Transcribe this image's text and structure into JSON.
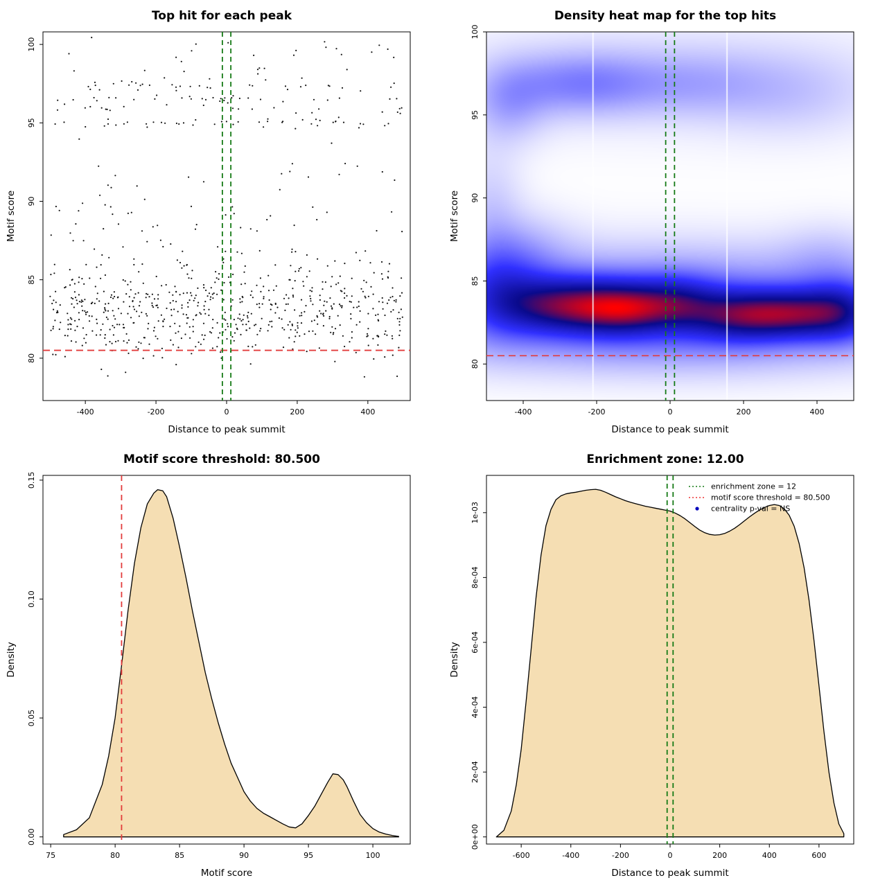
{
  "figure": {
    "background": "#ffffff"
  },
  "colors": {
    "background": "#ffffff",
    "point": "#151515",
    "threshold_red": "#e23b3b",
    "zone_green": "#157a15",
    "density_fill": "#f5deb3",
    "density_stroke": "#000000"
  },
  "chart_data": [
    {
      "id": "top-hit-scatter",
      "type": "scatter",
      "title": "Top hit for each peak",
      "xlabel": "Distance to peak summit",
      "ylabel": "Motif score",
      "xlim": [
        -520,
        520
      ],
      "ylim": [
        77.3,
        100.8
      ],
      "xticks": {
        "values": [
          -400,
          -200,
          0,
          200,
          400
        ],
        "labels": [
          "-400",
          "-200",
          "0",
          "200",
          "400"
        ]
      },
      "yticks": {
        "values": [
          80,
          85,
          90,
          95,
          100
        ],
        "labels": [
          "80",
          "85",
          "90",
          "95",
          "100"
        ]
      },
      "motif_score_threshold": 80.5,
      "enrichment_zone_halfwidth": 12,
      "overlays": {
        "hline": {
          "y": 80.5
        },
        "vlines": [
          {
            "x": -12
          },
          {
            "x": 12
          }
        ]
      },
      "points_spec": {
        "n": 870,
        "seed": 1337,
        "x_uniform": [
          -500,
          500
        ],
        "components": [
          {
            "weight": 0.72,
            "kind": "normal",
            "mean": 83.1,
            "sd": 1.5,
            "clip": [
              77.7,
              87.3
            ]
          },
          {
            "weight": 0.11,
            "kind": "normal",
            "mean": 88.8,
            "sd": 2.1,
            "clip": [
              85.6,
              94.4
            ]
          },
          {
            "weight": 0.17,
            "kind": "bands",
            "jitter": 0.16,
            "bands": [
              {
                "y": 95.0,
                "w": 0.26
              },
              {
                "y": 95.9,
                "w": 0.1
              },
              {
                "y": 96.5,
                "w": 0.2
              },
              {
                "y": 97.3,
                "w": 0.16
              },
              {
                "y": 97.7,
                "w": 0.08
              },
              {
                "y": 98.4,
                "w": 0.06
              },
              {
                "y": 99.1,
                "w": 0.05
              },
              {
                "y": 99.7,
                "w": 0.05
              },
              {
                "y": 100.3,
                "w": 0.04
              }
            ]
          }
        ]
      }
    },
    {
      "id": "density-heatmap",
      "type": "heatmap",
      "title": "Density heat map for the top hits",
      "xlabel": "Distance to peak summit",
      "ylabel": "Motif score",
      "xlim": [
        -500,
        500
      ],
      "ylim": [
        77.8,
        100
      ],
      "xticks": {
        "values": [
          -400,
          -200,
          0,
          200,
          400
        ],
        "labels": [
          "-400",
          "-200",
          "0",
          "200",
          "400"
        ]
      },
      "yticks": {
        "values": [
          80,
          85,
          90,
          95,
          100
        ],
        "labels": [
          "80",
          "85",
          "90",
          "95",
          "100"
        ]
      },
      "motif_score_threshold": 80.5,
      "enrichment_zone_halfwidth": 12,
      "overlays": {
        "hline": {
          "y": 80.5
        },
        "vlines": [
          {
            "x": -12
          },
          {
            "x": 12
          }
        ]
      },
      "white_gap_lines_x": [
        -210,
        155
      ],
      "palette": {
        "pos": [
          0,
          0.18,
          0.45,
          0.72,
          1
        ],
        "colors": [
          [
            255,
            255,
            255
          ],
          [
            176,
            176,
            255
          ],
          [
            48,
            48,
            255
          ],
          [
            10,
            10,
            140
          ],
          [
            255,
            0,
            0
          ]
        ]
      },
      "density_blobs": [
        {
          "x": -280,
          "y": 83.5,
          "sx": 115,
          "sy": 1.15,
          "a": 1.0
        },
        {
          "x": -120,
          "y": 83.3,
          "sx": 85,
          "sy": 1.05,
          "a": 0.8
        },
        {
          "x": 20,
          "y": 83.6,
          "sx": 80,
          "sy": 1.1,
          "a": 0.62
        },
        {
          "x": 170,
          "y": 82.9,
          "sx": 90,
          "sy": 1.05,
          "a": 0.6
        },
        {
          "x": 330,
          "y": 83.0,
          "sx": 110,
          "sy": 1.0,
          "a": 1.0
        },
        {
          "x": 470,
          "y": 83.2,
          "sx": 70,
          "sy": 1.25,
          "a": 0.55
        },
        {
          "x": -460,
          "y": 84.3,
          "sx": 85,
          "sy": 1.8,
          "a": 0.45
        },
        {
          "x": 0,
          "y": 84.0,
          "sx": 470,
          "sy": 2.0,
          "a": 0.45
        },
        {
          "x": 0,
          "y": 81.2,
          "sx": 450,
          "sy": 1.4,
          "a": 0.24
        },
        {
          "x": -250,
          "y": 96.9,
          "sx": 140,
          "sy": 1.3,
          "a": 0.34
        },
        {
          "x": -440,
          "y": 95.7,
          "sx": 70,
          "sy": 1.6,
          "a": 0.22
        },
        {
          "x": 60,
          "y": 96.9,
          "sx": 150,
          "sy": 1.35,
          "a": 0.18
        },
        {
          "x": 330,
          "y": 96.3,
          "sx": 150,
          "sy": 1.7,
          "a": 0.12
        },
        {
          "x": 0,
          "y": 97.3,
          "sx": 480,
          "sy": 2.4,
          "a": 0.08
        },
        {
          "x": -490,
          "y": 88.5,
          "sx": 60,
          "sy": 3.0,
          "a": 0.16
        },
        {
          "x": -390,
          "y": 87.0,
          "sx": 90,
          "sy": 1.5,
          "a": 0.14
        },
        {
          "x": 430,
          "y": 86.3,
          "sx": 90,
          "sy": 1.4,
          "a": 0.12
        }
      ]
    },
    {
      "id": "motif-score-density",
      "type": "area",
      "title": "Motif score threshold: 80.500",
      "xlabel": "Motif score",
      "ylabel": "Density",
      "xlim": [
        74.4,
        102.9
      ],
      "ylim": [
        -0.003,
        0.152
      ],
      "xticks": {
        "values": [
          75,
          80,
          85,
          90,
          95,
          100
        ],
        "labels": [
          "75",
          "80",
          "85",
          "90",
          "95",
          "100"
        ]
      },
      "yticks": {
        "values": [
          0,
          0.05,
          0.1,
          0.15
        ],
        "labels": [
          "0.00",
          "0.05",
          "0.10",
          "0.15"
        ]
      },
      "threshold_x": 80.5,
      "curve": {
        "x": [
          76,
          77,
          78,
          79,
          79.5,
          80,
          80.5,
          81,
          81.5,
          82,
          82.5,
          83,
          83.3,
          83.7,
          84,
          84.5,
          85,
          85.5,
          86,
          86.5,
          87,
          87.5,
          88,
          88.5,
          89,
          89.5,
          90,
          90.5,
          91,
          91.5,
          92,
          92.5,
          93,
          93.5,
          94,
          94.5,
          95,
          95.5,
          96,
          96.5,
          96.9,
          97.3,
          97.7,
          98,
          98.5,
          99,
          99.5,
          100,
          100.5,
          101,
          101.5,
          102
        ],
        "y": [
          0.001,
          0.003,
          0.008,
          0.022,
          0.034,
          0.05,
          0.072,
          0.095,
          0.115,
          0.13,
          0.14,
          0.1445,
          0.146,
          0.1455,
          0.143,
          0.134,
          0.122,
          0.109,
          0.095,
          0.082,
          0.069,
          0.058,
          0.048,
          0.039,
          0.031,
          0.025,
          0.019,
          0.015,
          0.012,
          0.01,
          0.0085,
          0.007,
          0.0055,
          0.0042,
          0.0038,
          0.0055,
          0.009,
          0.013,
          0.018,
          0.023,
          0.0265,
          0.0262,
          0.024,
          0.021,
          0.015,
          0.0095,
          0.006,
          0.0035,
          0.002,
          0.0012,
          0.0006,
          0.0002
        ]
      }
    },
    {
      "id": "summit-distance-density",
      "type": "area",
      "title": "Enrichment zone: 12.00",
      "xlabel": "Distance to peak summit",
      "ylabel": "Density",
      "xlim": [
        -740,
        740
      ],
      "ylim": [
        -2.2e-05,
        0.001115
      ],
      "xticks": {
        "values": [
          -600,
          -400,
          -200,
          0,
          200,
          400,
          600
        ],
        "labels": [
          "-600",
          "-400",
          "-200",
          "0",
          "200",
          "400",
          "600"
        ]
      },
      "yticks": {
        "values": [
          0,
          0.0002,
          0.0004,
          0.0006,
          0.0008,
          0.001
        ],
        "labels": [
          "0e+00",
          "2e-04",
          "4e-04",
          "6e-04",
          "8e-04",
          "1e-03"
        ]
      },
      "zone_x": [
        -12,
        12
      ],
      "curve": {
        "x": [
          -700,
          -670,
          -640,
          -620,
          -600,
          -580,
          -560,
          -540,
          -520,
          -500,
          -480,
          -460,
          -440,
          -420,
          -400,
          -380,
          -360,
          -340,
          -320,
          -300,
          -280,
          -260,
          -240,
          -220,
          -200,
          -180,
          -160,
          -140,
          -120,
          -100,
          -80,
          -60,
          -40,
          -20,
          0,
          20,
          40,
          60,
          80,
          100,
          120,
          140,
          160,
          180,
          200,
          220,
          240,
          260,
          280,
          300,
          320,
          340,
          360,
          380,
          400,
          420,
          440,
          460,
          480,
          500,
          520,
          540,
          560,
          580,
          600,
          620,
          640,
          660,
          680,
          700
        ],
        "y": [
          0,
          2e-05,
          8e-05,
          0.00016,
          0.00027,
          0.00042,
          0.00058,
          0.00074,
          0.00087,
          0.00096,
          0.00101,
          0.00104,
          0.001052,
          0.001058,
          0.001061,
          0.001063,
          0.001066,
          0.001069,
          0.001071,
          0.001072,
          0.001069,
          0.001063,
          0.001056,
          0.001049,
          0.001043,
          0.001037,
          0.001032,
          0.001028,
          0.001024,
          0.00102,
          0.001017,
          0.001014,
          0.001011,
          0.001008,
          0.001005,
          0.000999,
          0.000991,
          0.000981,
          0.000969,
          0.000957,
          0.000946,
          0.000938,
          0.000933,
          0.000931,
          0.000932,
          0.000936,
          0.000943,
          0.000952,
          0.000963,
          0.000975,
          0.000987,
          0.000998,
          0.001008,
          0.001016,
          0.001022,
          0.001025,
          0.001022,
          0.001012,
          0.000992,
          0.000958,
          0.000905,
          0.00083,
          0.00073,
          0.000605,
          0.000465,
          0.000325,
          0.0002,
          0.000105,
          4e-05,
          1e-05
        ]
      },
      "legend": {
        "items": [
          {
            "type": "line",
            "color": "#157a15",
            "label": "enrichment zone = 12"
          },
          {
            "type": "line",
            "color": "#ee3333",
            "label": "motif score threshold = 80.500"
          },
          {
            "type": "point",
            "color": "#0000bb",
            "label": "centrality p-val = NS"
          }
        ]
      }
    }
  ]
}
